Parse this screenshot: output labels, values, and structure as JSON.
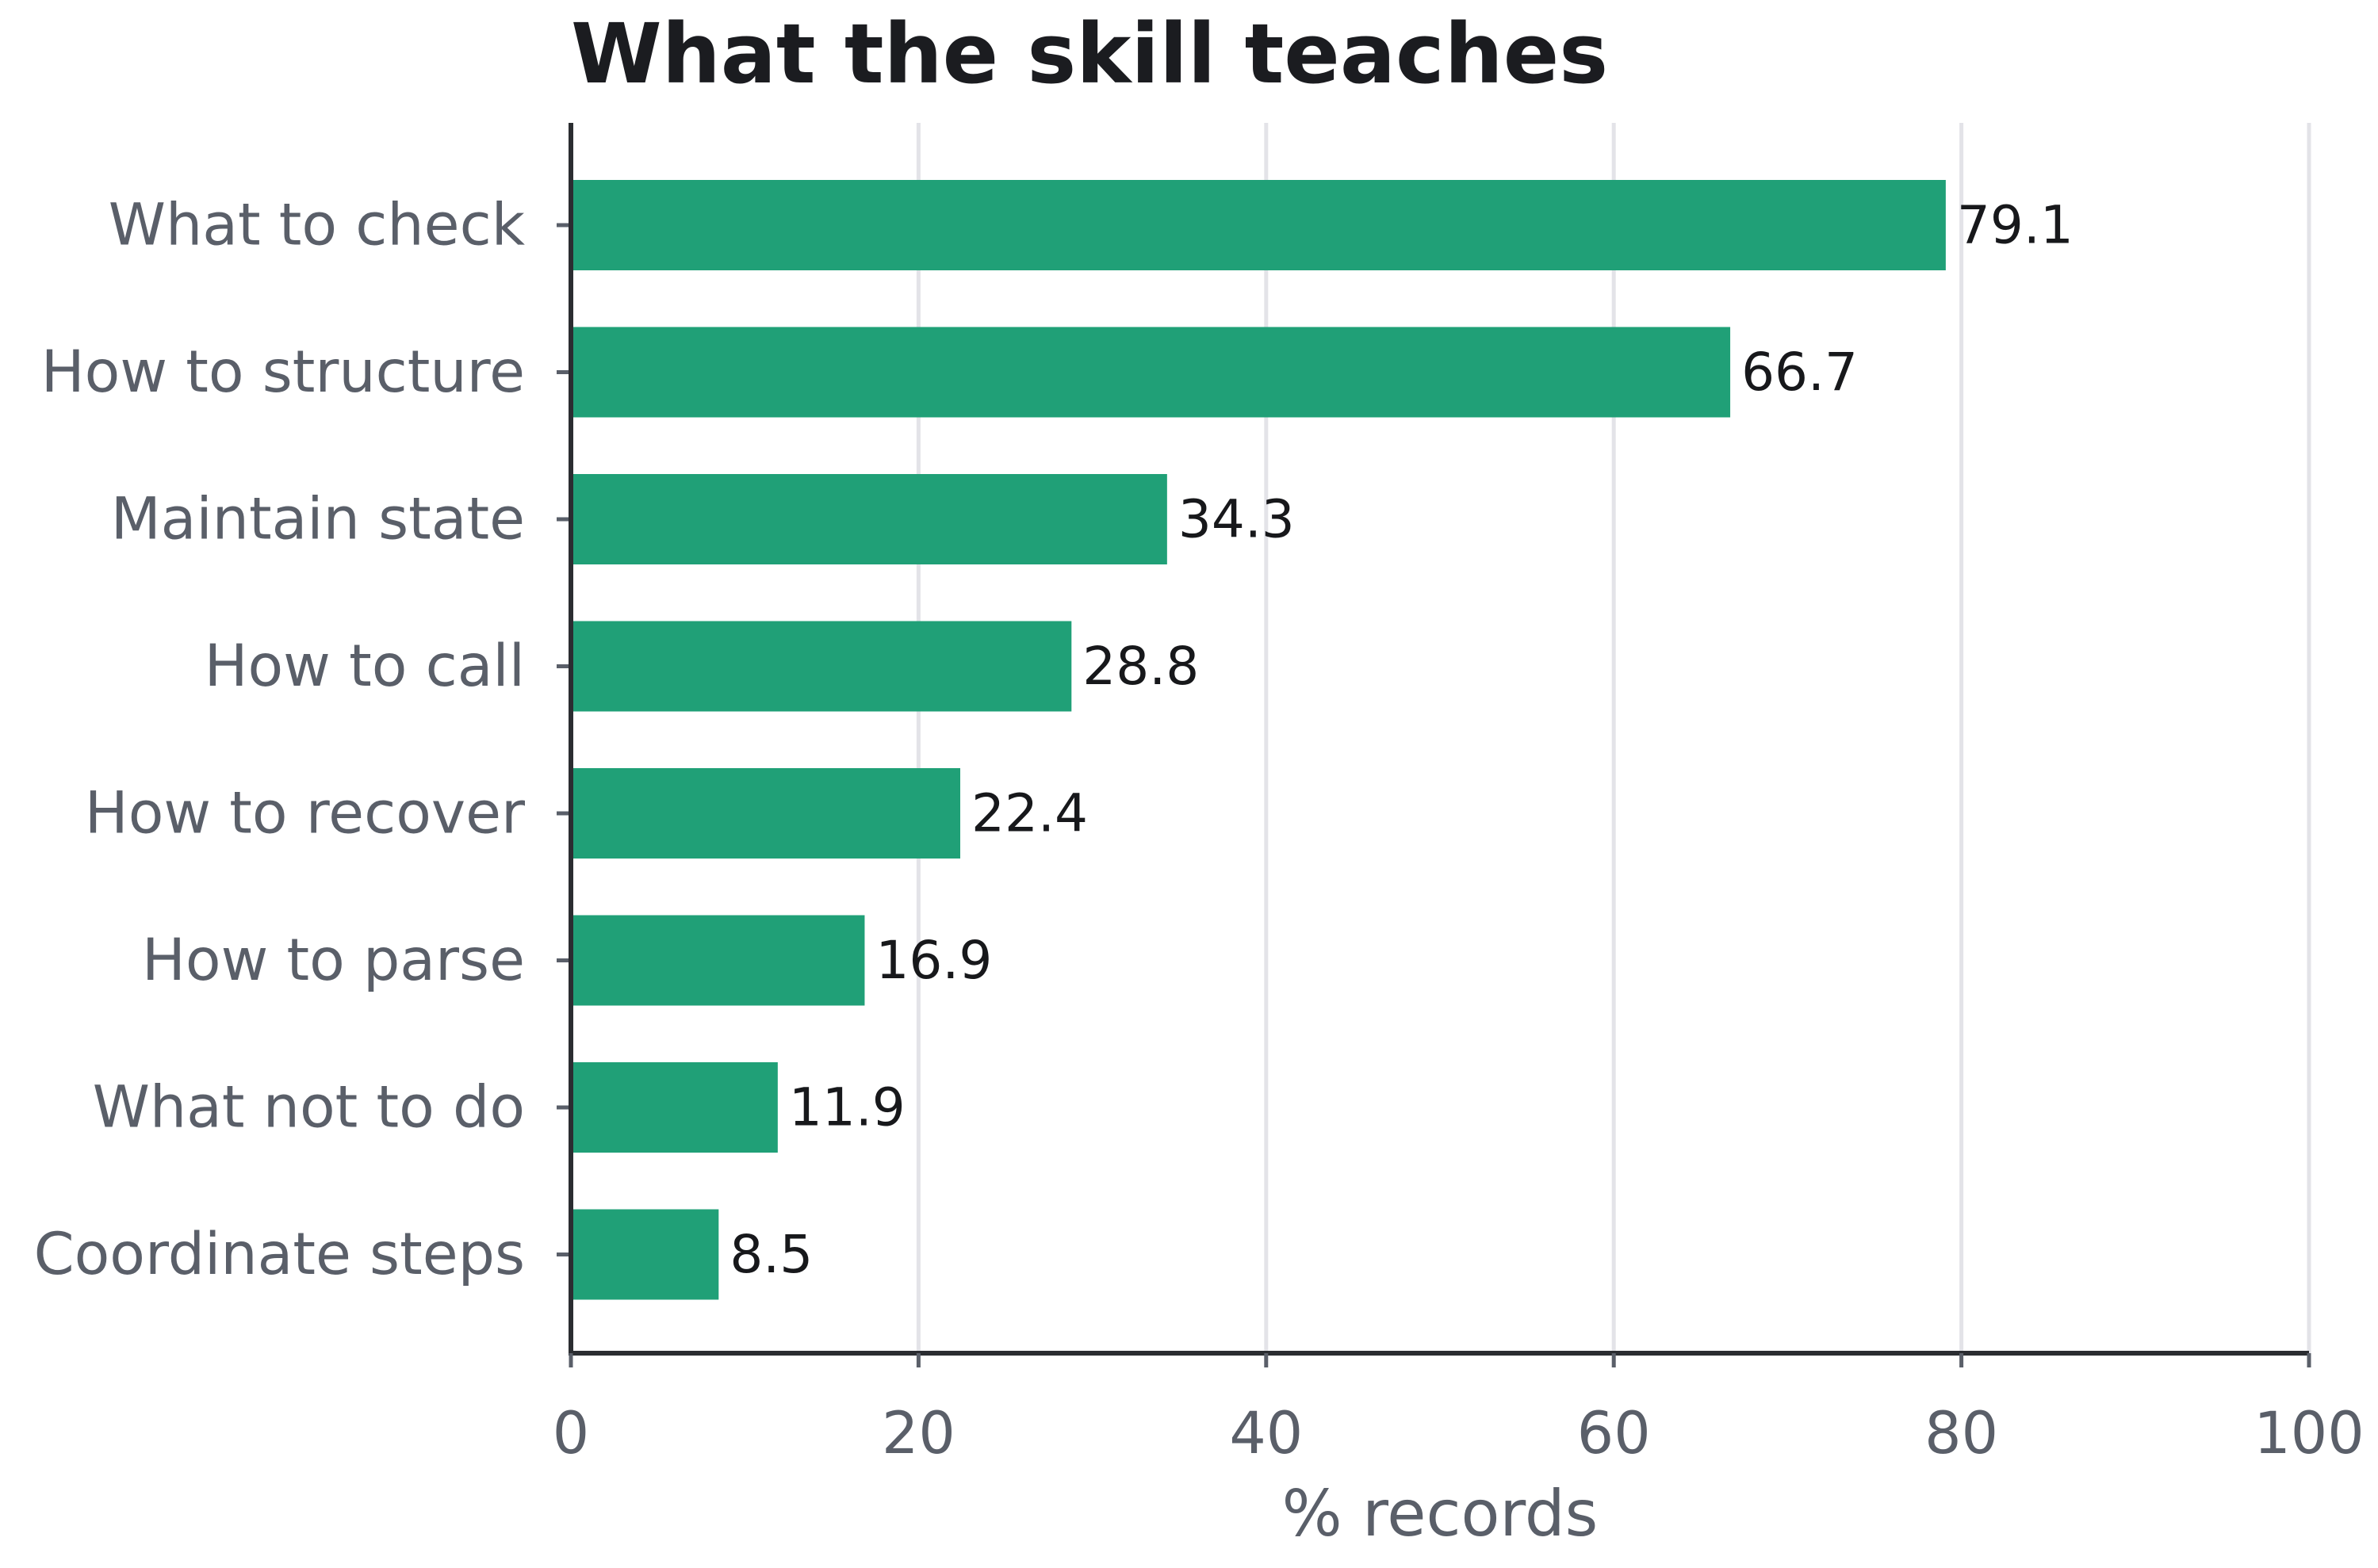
{
  "chart_data": {
    "type": "bar",
    "orientation": "horizontal",
    "title": "What the skill teaches",
    "xlabel": "% records",
    "ylabel": "",
    "xlim": [
      0,
      100
    ],
    "xticks": [
      0,
      20,
      40,
      60,
      80,
      100
    ],
    "grid": true,
    "categories": [
      "What to check",
      "How to structure",
      "Maintain state",
      "How to call",
      "How to recover",
      "How to parse",
      "What not to do",
      "Coordinate steps"
    ],
    "values": [
      79.1,
      66.7,
      34.3,
      28.8,
      22.4,
      16.9,
      11.9,
      8.5
    ],
    "value_labels": [
      "79.1",
      "66.7",
      "34.3",
      "28.8",
      "22.4",
      "16.9",
      "11.9",
      "8.5"
    ],
    "colors": {
      "bar": "#20a077",
      "title": "#1b1c20",
      "tick_text": "#5a5f69",
      "value_text": "#17181b",
      "grid": "#e3e3e8",
      "axis": "#2b2d31"
    }
  }
}
